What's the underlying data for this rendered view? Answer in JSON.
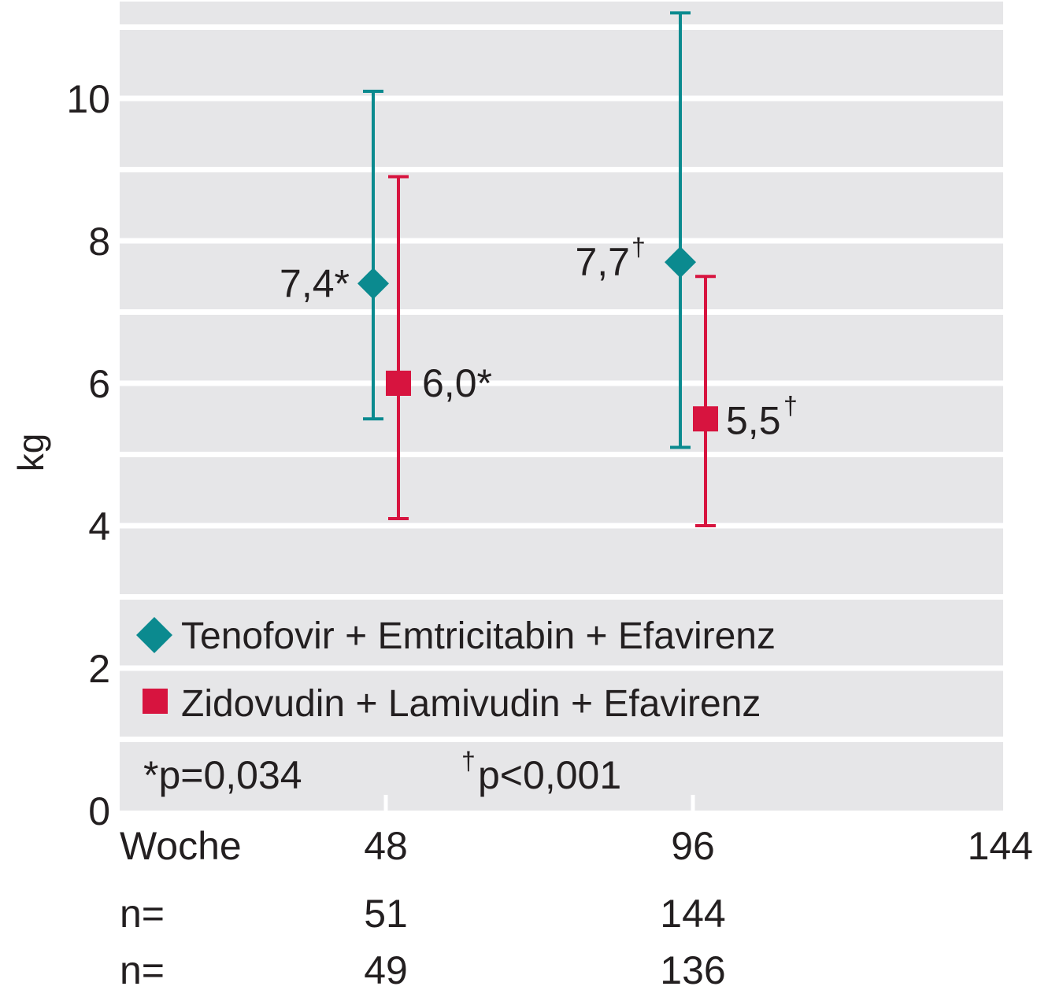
{
  "chart_data": {
    "type": "scatter",
    "ylabel": "kg",
    "xlabel": "Woche",
    "ylim": [
      0,
      11
    ],
    "y_ticks": [
      "0",
      "2",
      "4",
      "6",
      "8",
      "10"
    ],
    "x_ticks": [
      "48",
      "96",
      "144"
    ],
    "grid": true,
    "legend_position": "bottom-left inside plot",
    "series": [
      {
        "name": "Tenofovir + Emtricitabin + Efavirenz",
        "color": "#0b8a8f",
        "marker": "diamond",
        "points": [
          {
            "x": 48,
            "y": 7.4,
            "err_low": 5.5,
            "err_high": 10.1,
            "label": "7,4",
            "label_mark": "*"
          },
          {
            "x": 96,
            "y": 7.7,
            "err_low": 5.1,
            "err_high": 11.2,
            "label": "7,7",
            "label_mark": "†"
          }
        ]
      },
      {
        "name": "Zidovudin + Lamivudin + Efavirenz",
        "color": "#d7143f",
        "marker": "square",
        "points": [
          {
            "x": 48,
            "y": 6.0,
            "err_low": 4.1,
            "err_high": 8.9,
            "label": "6,0",
            "label_mark": "*"
          },
          {
            "x": 96,
            "y": 5.5,
            "err_low": 4.0,
            "err_high": 7.5,
            "label": "5,5",
            "label_mark": "†"
          }
        ]
      }
    ],
    "footnotes": [
      {
        "mark": "*",
        "text": "p=0,034"
      },
      {
        "mark": "†",
        "text": "p<0,001"
      }
    ],
    "n_rows": [
      {
        "label": "n=",
        "values": [
          "51",
          "144"
        ]
      },
      {
        "label": "n=",
        "values": [
          "49",
          "136"
        ]
      }
    ]
  }
}
